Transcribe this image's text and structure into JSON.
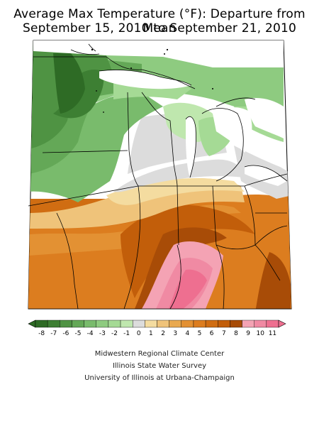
{
  "title": {
    "line1": "Average Max Temperature (°F): Departure from Mean",
    "line2": "September 15, 2010 to September 21, 2010"
  },
  "legend": {
    "labels": [
      "-8",
      "-7",
      "-6",
      "-5",
      "-4",
      "-3",
      "-2",
      "-1",
      "0",
      "1",
      "2",
      "3",
      "4",
      "5",
      "6",
      "7",
      "8",
      "9",
      "10",
      "11"
    ],
    "colors": [
      "#2e6b25",
      "#3d7f33",
      "#4f9343",
      "#64a857",
      "#79bb6c",
      "#8ecb80",
      "#a5da95",
      "#bfe7ae",
      "#dcdcdc",
      "#f4dca0",
      "#efc37a",
      "#e9a94f",
      "#e39133",
      "#dc7d1f",
      "#d06d12",
      "#c25e0a",
      "#a84c07",
      "#f4a3b4",
      "#f08aa3",
      "#ee6f90"
    ]
  },
  "credits": {
    "line1": "Midwestern Regional Climate Center",
    "line2": "Illinois State Water Survey",
    "line3": "University of Illinois at Urbana-Champaign"
  }
}
